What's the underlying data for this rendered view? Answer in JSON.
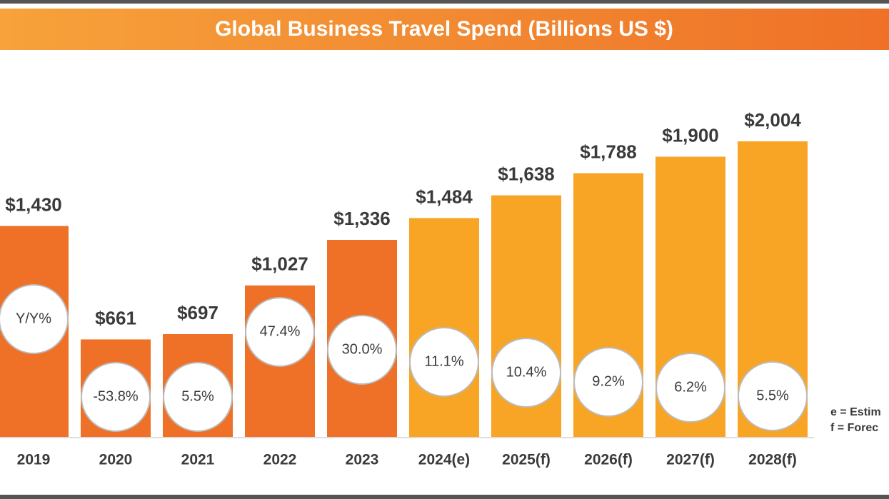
{
  "chart_data": {
    "type": "bar",
    "title": "Global Business Travel Spend (Billions US $)",
    "categories": [
      "2019",
      "2020",
      "2021",
      "2022",
      "2023",
      "2024(e)",
      "2025(f)",
      "2026(f)",
      "2027(f)",
      "2028(f)"
    ],
    "values": [
      1430,
      661,
      697,
      1027,
      1336,
      1484,
      1638,
      1788,
      1900,
      2004
    ],
    "value_labels": [
      "$1,430",
      "$661",
      "$697",
      "$1,027",
      "$1,336",
      "$1,484",
      "$1,638",
      "$1,788",
      "$1,900",
      "$2,004"
    ],
    "colors": [
      "#ef7127",
      "#ef7127",
      "#ef7127",
      "#ef7127",
      "#ef7127",
      "#f8a526",
      "#f8a526",
      "#f8a526",
      "#f8a526",
      "#f8a526"
    ],
    "yoy_title": "Y/Y%",
    "yoy": [
      null,
      -53.8,
      5.5,
      47.4,
      30.0,
      11.1,
      10.4,
      9.2,
      6.2,
      5.5
    ],
    "yoy_labels": [
      null,
      "-53.8%",
      "5.5%",
      "47.4%",
      "30.0%",
      "11.1%",
      "10.4%",
      "9.2%",
      "6.2%",
      "5.5%"
    ],
    "notes": [
      "e = Estim",
      "f = Forec"
    ]
  }
}
